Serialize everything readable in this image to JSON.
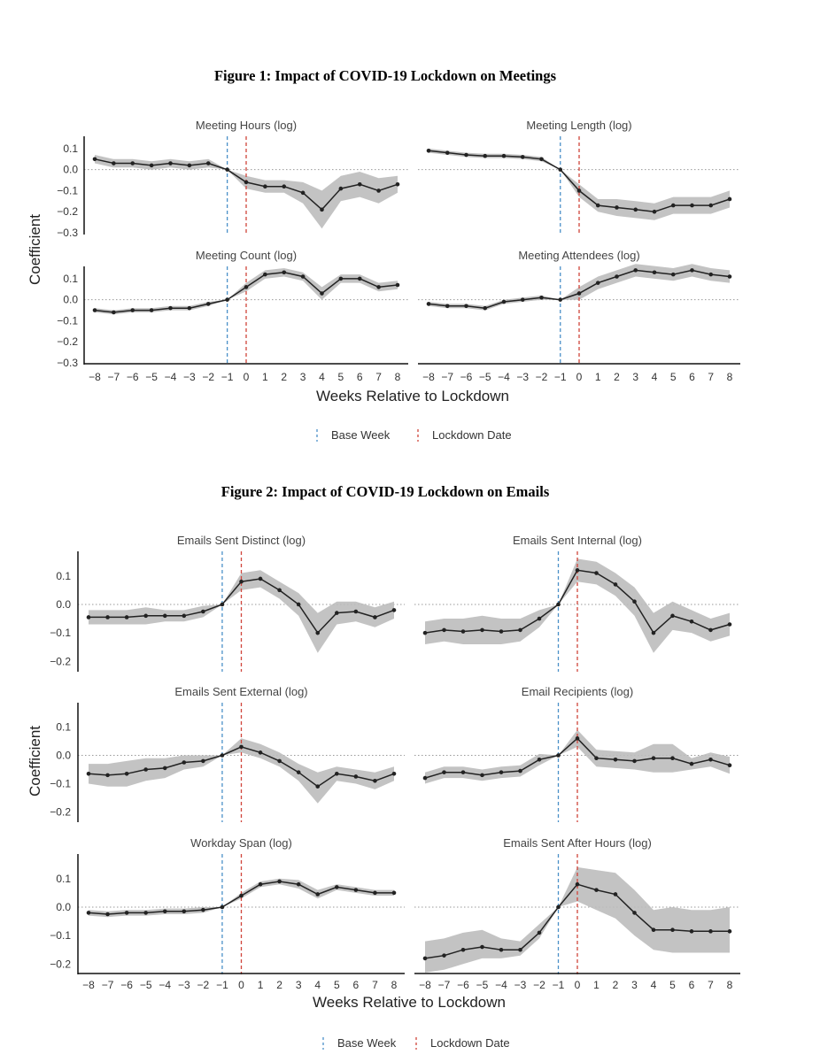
{
  "figures": {
    "fig1_title": "Figure 1: Impact of COVID-19 Lockdown on Meetings",
    "fig2_title": "Figure 2: Impact of COVID-19 Lockdown on Emails"
  },
  "legend": {
    "base_week": "Base Week",
    "lockdown_date": "Lockdown Date"
  },
  "colors": {
    "base_week": "#4a90c8",
    "lockdown_date": "#d0443a",
    "ribbon": "#bdbdbd",
    "line": "#222222"
  },
  "chart_data": [
    {
      "type": "line",
      "figure": 1,
      "ylabel": "Coefficient",
      "xlabel": "Weeks Relative to Lockdown",
      "x": [
        -8,
        -7,
        -6,
        -5,
        -4,
        -3,
        -2,
        -1,
        0,
        1,
        2,
        3,
        4,
        5,
        6,
        7,
        8
      ],
      "ylim": [
        -0.3,
        0.15
      ],
      "yticks": [
        0.1,
        0.0,
        -0.1,
        -0.2,
        -0.3
      ],
      "base_week_x": -1,
      "lockdown_x": 0,
      "panels": [
        {
          "title": "Meeting Hours (log)",
          "values": [
            0.05,
            0.03,
            0.03,
            0.02,
            0.03,
            0.02,
            0.03,
            0.0,
            -0.06,
            -0.08,
            -0.08,
            -0.11,
            -0.19,
            -0.09,
            -0.07,
            -0.1,
            -0.07
          ],
          "lower": [
            0.03,
            0.01,
            0.01,
            0.0,
            0.01,
            0.0,
            0.01,
            0.0,
            -0.09,
            -0.11,
            -0.11,
            -0.16,
            -0.28,
            -0.15,
            -0.13,
            -0.16,
            -0.11
          ],
          "upper": [
            0.07,
            0.05,
            0.05,
            0.04,
            0.05,
            0.04,
            0.05,
            0.0,
            -0.03,
            -0.05,
            -0.05,
            -0.06,
            -0.1,
            -0.03,
            -0.01,
            -0.04,
            -0.03
          ]
        },
        {
          "title": "Meeting Length (log)",
          "values": [
            0.09,
            0.08,
            0.07,
            0.065,
            0.065,
            0.06,
            0.05,
            0.0,
            -0.1,
            -0.17,
            -0.18,
            -0.19,
            -0.2,
            -0.17,
            -0.17,
            -0.17,
            -0.14
          ],
          "lower": [
            0.08,
            0.07,
            0.06,
            0.055,
            0.055,
            0.05,
            0.04,
            0.0,
            -0.13,
            -0.2,
            -0.22,
            -0.23,
            -0.24,
            -0.21,
            -0.21,
            -0.21,
            -0.18
          ],
          "upper": [
            0.1,
            0.09,
            0.08,
            0.075,
            0.075,
            0.07,
            0.06,
            0.0,
            -0.07,
            -0.14,
            -0.14,
            -0.15,
            -0.16,
            -0.13,
            -0.13,
            -0.13,
            -0.1
          ]
        },
        {
          "title": "Meeting Count (log)",
          "values": [
            -0.05,
            -0.06,
            -0.05,
            -0.05,
            -0.04,
            -0.04,
            -0.02,
            0.0,
            0.06,
            0.12,
            0.13,
            0.11,
            0.03,
            0.1,
            0.1,
            0.06,
            0.07
          ],
          "lower": [
            -0.06,
            -0.07,
            -0.06,
            -0.06,
            -0.05,
            -0.05,
            -0.03,
            0.0,
            0.04,
            0.1,
            0.11,
            0.09,
            0.0,
            0.08,
            0.08,
            0.04,
            0.05
          ],
          "upper": [
            -0.04,
            -0.05,
            -0.04,
            -0.04,
            -0.03,
            -0.03,
            -0.01,
            0.0,
            0.08,
            0.14,
            0.15,
            0.13,
            0.06,
            0.12,
            0.12,
            0.08,
            0.09
          ]
        },
        {
          "title": "Meeting Attendees (log)",
          "values": [
            -0.02,
            -0.03,
            -0.03,
            -0.04,
            -0.01,
            0.0,
            0.01,
            0.0,
            0.03,
            0.08,
            0.11,
            0.14,
            0.13,
            0.12,
            0.14,
            0.12,
            0.11
          ],
          "lower": [
            -0.03,
            -0.04,
            -0.04,
            -0.05,
            -0.02,
            -0.01,
            0.0,
            0.0,
            0.0,
            0.05,
            0.08,
            0.11,
            0.1,
            0.09,
            0.11,
            0.09,
            0.08
          ],
          "upper": [
            -0.01,
            -0.02,
            -0.02,
            -0.03,
            0.0,
            0.01,
            0.02,
            0.0,
            0.06,
            0.11,
            0.14,
            0.17,
            0.16,
            0.15,
            0.17,
            0.15,
            0.14
          ]
        }
      ]
    },
    {
      "type": "line",
      "figure": 2,
      "ylabel": "Coefficient",
      "xlabel": "Weeks Relative to Lockdown",
      "x": [
        -8,
        -7,
        -6,
        -5,
        -4,
        -3,
        -2,
        -1,
        0,
        1,
        2,
        3,
        4,
        5,
        6,
        7,
        8
      ],
      "ylim": [
        -0.23,
        0.18
      ],
      "yticks": [
        0.1,
        0.0,
        -0.1,
        -0.2
      ],
      "base_week_x": -1,
      "lockdown_x": 0,
      "panels": [
        {
          "title": "Emails Sent Distinct (log)",
          "values": [
            -0.045,
            -0.045,
            -0.045,
            -0.04,
            -0.04,
            -0.04,
            -0.025,
            0.0,
            0.08,
            0.09,
            0.05,
            0.0,
            -0.1,
            -0.03,
            -0.025,
            -0.045,
            -0.02
          ],
          "lower": [
            -0.07,
            -0.07,
            -0.07,
            -0.07,
            -0.06,
            -0.06,
            -0.045,
            0.0,
            0.05,
            0.06,
            0.02,
            -0.04,
            -0.17,
            -0.07,
            -0.06,
            -0.08,
            -0.05
          ],
          "upper": [
            -0.02,
            -0.02,
            -0.02,
            -0.01,
            -0.02,
            -0.02,
            -0.005,
            0.0,
            0.11,
            0.12,
            0.08,
            0.04,
            -0.03,
            0.01,
            0.01,
            -0.01,
            0.01
          ]
        },
        {
          "title": "Emails Sent Internal (log)",
          "values": [
            -0.1,
            -0.09,
            -0.095,
            -0.09,
            -0.095,
            -0.09,
            -0.05,
            0.0,
            0.12,
            0.11,
            0.07,
            0.01,
            -0.1,
            -0.04,
            -0.06,
            -0.09,
            -0.07
          ],
          "lower": [
            -0.14,
            -0.13,
            -0.14,
            -0.14,
            -0.14,
            -0.13,
            -0.08,
            0.0,
            0.08,
            0.07,
            0.03,
            -0.04,
            -0.17,
            -0.09,
            -0.1,
            -0.13,
            -0.11
          ],
          "upper": [
            -0.06,
            -0.05,
            -0.05,
            -0.04,
            -0.05,
            -0.05,
            -0.02,
            0.0,
            0.16,
            0.15,
            0.11,
            0.06,
            -0.03,
            0.01,
            -0.02,
            -0.05,
            -0.03
          ]
        },
        {
          "title": "Emails Sent External (log)",
          "values": [
            -0.065,
            -0.07,
            -0.065,
            -0.05,
            -0.045,
            -0.025,
            -0.02,
            0.0,
            0.03,
            0.01,
            -0.02,
            -0.06,
            -0.11,
            -0.065,
            -0.075,
            -0.09,
            -0.065
          ],
          "lower": [
            -0.1,
            -0.11,
            -0.11,
            -0.09,
            -0.08,
            -0.05,
            -0.04,
            0.0,
            0.01,
            -0.01,
            -0.04,
            -0.09,
            -0.17,
            -0.09,
            -0.1,
            -0.12,
            -0.09
          ],
          "upper": [
            -0.03,
            -0.03,
            -0.02,
            -0.01,
            -0.01,
            0.0,
            0.0,
            0.0,
            0.06,
            0.04,
            0.01,
            -0.03,
            -0.06,
            -0.04,
            -0.05,
            -0.06,
            -0.04
          ]
        },
        {
          "title": "Email Recipients (log)",
          "values": [
            -0.08,
            -0.06,
            -0.06,
            -0.07,
            -0.06,
            -0.055,
            -0.015,
            0.0,
            0.06,
            -0.01,
            -0.015,
            -0.02,
            -0.01,
            -0.01,
            -0.03,
            -0.015,
            -0.035
          ],
          "lower": [
            -0.1,
            -0.08,
            -0.08,
            -0.09,
            -0.08,
            -0.075,
            -0.035,
            0.0,
            0.03,
            -0.04,
            -0.045,
            -0.05,
            -0.06,
            -0.06,
            -0.05,
            -0.04,
            -0.065
          ],
          "upper": [
            -0.06,
            -0.04,
            -0.04,
            -0.05,
            -0.04,
            -0.035,
            0.005,
            0.0,
            0.09,
            0.02,
            0.015,
            0.01,
            0.04,
            0.04,
            -0.01,
            0.01,
            -0.005
          ]
        },
        {
          "title": "Workday Span (log)",
          "values": [
            -0.02,
            -0.025,
            -0.02,
            -0.02,
            -0.015,
            -0.015,
            -0.01,
            0.0,
            0.04,
            0.08,
            0.09,
            0.08,
            0.045,
            0.07,
            0.06,
            0.05,
            0.05
          ],
          "lower": [
            -0.03,
            -0.035,
            -0.03,
            -0.03,
            -0.025,
            -0.025,
            -0.02,
            0.0,
            0.03,
            0.07,
            0.08,
            0.065,
            0.03,
            0.06,
            0.05,
            0.04,
            0.04
          ],
          "upper": [
            -0.01,
            -0.015,
            -0.01,
            -0.01,
            -0.005,
            -0.005,
            0.0,
            0.0,
            0.05,
            0.09,
            0.1,
            0.095,
            0.06,
            0.08,
            0.07,
            0.06,
            0.06
          ]
        },
        {
          "title": "Emails Sent After Hours (log)",
          "values": [
            -0.18,
            -0.17,
            -0.15,
            -0.14,
            -0.15,
            -0.15,
            -0.09,
            0.0,
            0.08,
            0.06,
            0.045,
            -0.02,
            -0.08,
            -0.08,
            -0.085,
            -0.085,
            -0.085
          ],
          "lower": [
            -0.23,
            -0.22,
            -0.2,
            -0.18,
            -0.18,
            -0.17,
            -0.11,
            0.0,
            0.02,
            -0.01,
            -0.04,
            -0.1,
            -0.15,
            -0.16,
            -0.16,
            -0.16,
            -0.16
          ],
          "upper": [
            -0.12,
            -0.11,
            -0.09,
            -0.08,
            -0.11,
            -0.12,
            -0.06,
            0.0,
            0.14,
            0.13,
            0.12,
            0.06,
            -0.01,
            0.0,
            -0.01,
            -0.01,
            0.0
          ]
        }
      ]
    }
  ]
}
